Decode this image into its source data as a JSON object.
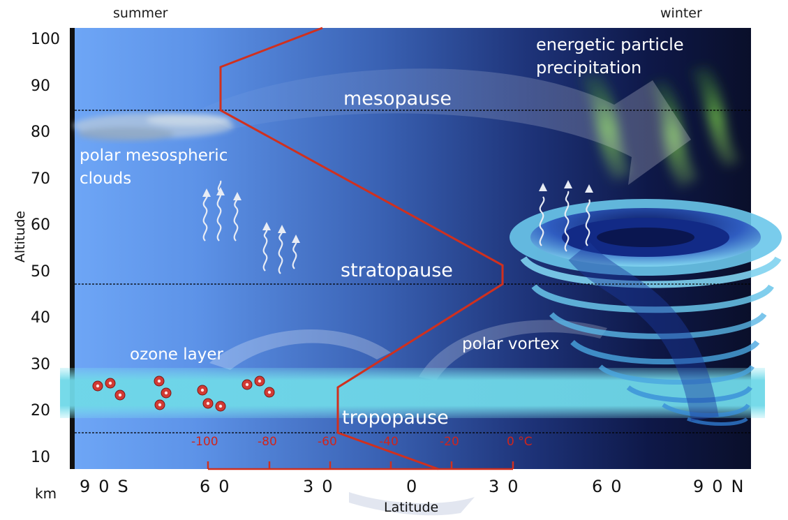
{
  "header": {
    "summer": "summer",
    "winter": "winter"
  },
  "y_axis": {
    "title": "Altitude",
    "unit": "km",
    "ticks": [
      "100",
      "90",
      "80",
      "70",
      "60",
      "50",
      "40",
      "30",
      "20",
      "10"
    ]
  },
  "x_axis": {
    "title": "Latitude",
    "ticks": [
      "90S",
      "60",
      "30",
      "0",
      "30",
      "60",
      "90N"
    ]
  },
  "temperature_scale": {
    "ticks": [
      "-100",
      "-80",
      "-60",
      "-40",
      "-20",
      "0 °C"
    ]
  },
  "annotations": {
    "energetic_line1": "energetic particle",
    "energetic_line2": "precipitation",
    "mesopause": "mesopause",
    "pmc_line1": "polar mesospheric",
    "pmc_line2": "clouds",
    "stratopause": "stratopause",
    "ozone_layer": "ozone layer",
    "polar_vortex": "polar vortex",
    "tropopause": "tropopause"
  },
  "colors": {
    "temperature_profile": "#d0301e",
    "ozone_band": "#6fd8e8",
    "summer_sky": "#6ea4f4",
    "winter_sky": "#0a0f2a"
  }
}
